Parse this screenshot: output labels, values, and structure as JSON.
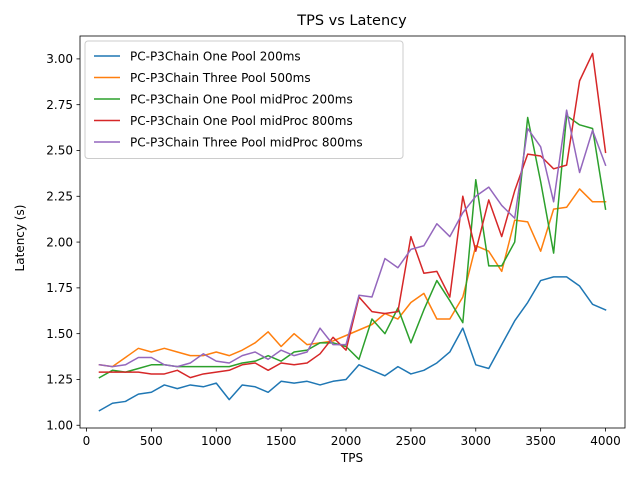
{
  "chart_data": {
    "type": "line",
    "title": "TPS vs Latency",
    "xlabel": "TPS",
    "ylabel": "Latency (s)",
    "xlim": [
      -50,
      4150
    ],
    "ylim": [
      0.985,
      3.125
    ],
    "xticks": [
      0,
      500,
      1000,
      1500,
      2000,
      2500,
      3000,
      3500,
      4000
    ],
    "yticks": [
      1.0,
      1.25,
      1.5,
      1.75,
      2.0,
      2.25,
      2.5,
      2.75,
      3.0
    ],
    "grid": false,
    "legend_position": "upper-left",
    "x": [
      100,
      200,
      300,
      400,
      500,
      600,
      700,
      800,
      900,
      1000,
      1100,
      1200,
      1300,
      1400,
      1500,
      1600,
      1700,
      1800,
      1900,
      2000,
      2100,
      2200,
      2300,
      2400,
      2500,
      2600,
      2700,
      2800,
      2900,
      3000,
      3100,
      3200,
      3300,
      3400,
      3500,
      3600,
      3700,
      3800,
      3900,
      4000
    ],
    "series": [
      {
        "name": "PC-P3Chain One Pool 200ms",
        "color": "#1f77b4",
        "values": [
          1.08,
          1.12,
          1.13,
          1.17,
          1.18,
          1.22,
          1.2,
          1.22,
          1.21,
          1.23,
          1.14,
          1.22,
          1.21,
          1.18,
          1.24,
          1.23,
          1.24,
          1.22,
          1.24,
          1.25,
          1.33,
          1.3,
          1.27,
          1.32,
          1.28,
          1.3,
          1.34,
          1.4,
          1.53,
          1.33,
          1.31,
          1.44,
          1.57,
          1.67,
          1.79,
          1.81,
          1.81,
          1.76,
          1.66,
          1.63
        ]
      },
      {
        "name": "PC-P3Chain Three Pool 500ms",
        "color": "#ff7f0e",
        "values": [
          1.33,
          1.32,
          1.37,
          1.42,
          1.4,
          1.42,
          1.4,
          1.38,
          1.38,
          1.4,
          1.38,
          1.41,
          1.45,
          1.51,
          1.43,
          1.5,
          1.44,
          1.45,
          1.46,
          1.49,
          1.52,
          1.55,
          1.61,
          1.58,
          1.67,
          1.72,
          1.58,
          1.58,
          1.7,
          1.98,
          1.95,
          1.84,
          2.12,
          2.11,
          1.95,
          2.18,
          2.19,
          2.29,
          2.22,
          2.22
        ]
      },
      {
        "name": "PC-P3Chain One Pool midProc 200ms",
        "color": "#2ca02c",
        "values": [
          1.26,
          1.3,
          1.29,
          1.31,
          1.33,
          1.33,
          1.32,
          1.32,
          1.32,
          1.32,
          1.32,
          1.34,
          1.35,
          1.38,
          1.35,
          1.4,
          1.41,
          1.45,
          1.45,
          1.43,
          1.36,
          1.58,
          1.5,
          1.64,
          1.45,
          1.63,
          1.79,
          1.68,
          1.56,
          2.34,
          1.87,
          1.87,
          2.0,
          2.68,
          2.33,
          1.94,
          2.69,
          2.64,
          2.62,
          2.18
        ]
      },
      {
        "name": "PC-P3Chain One Pool midProc 800ms",
        "color": "#d62728",
        "values": [
          1.29,
          1.29,
          1.29,
          1.29,
          1.28,
          1.28,
          1.3,
          1.26,
          1.28,
          1.29,
          1.3,
          1.33,
          1.34,
          1.3,
          1.34,
          1.33,
          1.34,
          1.39,
          1.48,
          1.41,
          1.7,
          1.62,
          1.61,
          1.62,
          2.03,
          1.83,
          1.84,
          1.7,
          2.25,
          1.95,
          2.23,
          2.03,
          2.28,
          2.48,
          2.47,
          2.4,
          2.42,
          2.88,
          3.03,
          2.49
        ]
      },
      {
        "name": "PC-P3Chain Three Pool midProc 800ms",
        "color": "#9467bd",
        "values": [
          1.33,
          1.32,
          1.33,
          1.37,
          1.37,
          1.33,
          1.32,
          1.34,
          1.39,
          1.35,
          1.34,
          1.38,
          1.4,
          1.36,
          1.41,
          1.38,
          1.4,
          1.53,
          1.44,
          1.44,
          1.71,
          1.7,
          1.91,
          1.86,
          1.96,
          1.98,
          2.1,
          2.03,
          2.16,
          2.25,
          2.3,
          2.2,
          2.13,
          2.62,
          2.52,
          2.22,
          2.72,
          2.38,
          2.61,
          2.42
        ]
      }
    ]
  }
}
